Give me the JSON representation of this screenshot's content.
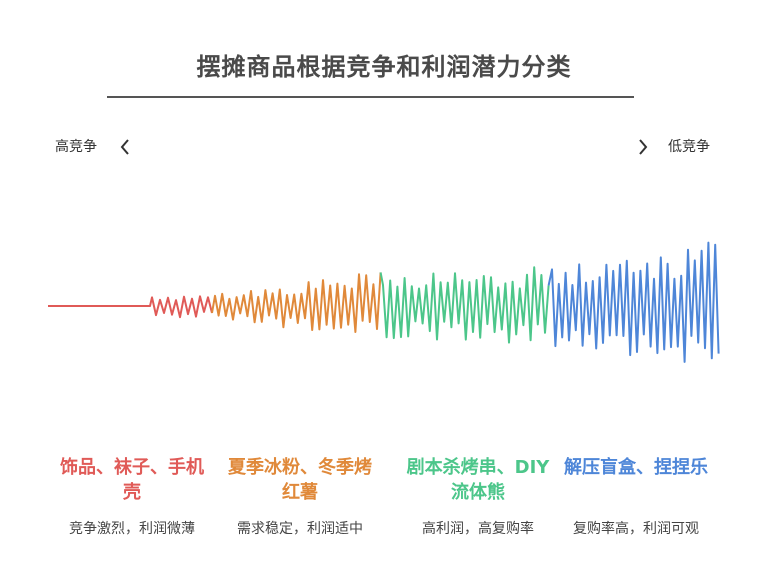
{
  "title": "摆摊商品根据竞争和利润潜力分类",
  "axis": {
    "left_label": "高竞争",
    "right_label": "低竞争"
  },
  "colors": {
    "red": "#e05a57",
    "orange": "#e0893a",
    "green": "#4cc68a",
    "blue": "#4e86d8"
  },
  "categories": [
    {
      "title": "饰品、袜子、手机壳",
      "desc": "竞争激烈，利润微薄",
      "color": "#e05a57"
    },
    {
      "title": "夏季冰粉、冬季烤红薯",
      "desc": "需求稳定，利润适中",
      "color": "#e0893a"
    },
    {
      "title": "剧本杀烤串、DIY流体熊",
      "desc": "高利润，高复购率",
      "color": "#4cc68a"
    },
    {
      "title": "解压盲盒、捏捏乐",
      "desc": "复购率高，利润可观",
      "color": "#4e86d8"
    }
  ]
}
